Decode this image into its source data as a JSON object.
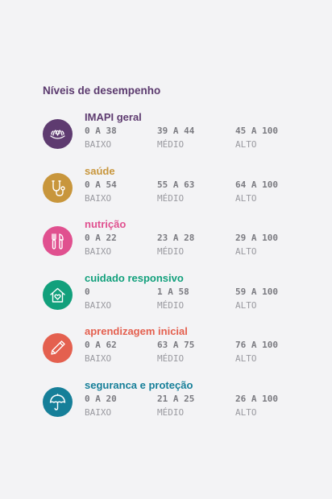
{
  "heading": "Níveis de desempenho",
  "categories": [
    {
      "title": "IMAPI geral",
      "color": "#5e3b70",
      "icon": "lotus-icon",
      "ranges": [
        "0 A 38",
        "39 A 44",
        "45 A 100"
      ],
      "levels": [
        "BAIXO",
        "MÉDIO",
        "ALTO"
      ]
    },
    {
      "title": "saúde",
      "color": "#c8963c",
      "icon": "stethoscope-icon",
      "ranges": [
        "0 A 54",
        "55 A 63",
        "64 A 100"
      ],
      "levels": [
        "BAIXO",
        "MÉDIO",
        "ALTO"
      ]
    },
    {
      "title": "nutrição",
      "color": "#e0508f",
      "icon": "cutlery-icon",
      "ranges": [
        "0 A 22",
        "23 A 28",
        "29 A 100"
      ],
      "levels": [
        "BAIXO",
        "MÉDIO",
        "ALTO"
      ]
    },
    {
      "title": "cuidado responsivo",
      "color": "#12a07c",
      "icon": "house-heart-icon",
      "ranges": [
        "0",
        "1 A 58",
        "59 A 100"
      ],
      "levels": [
        "BAIXO",
        "MÉDIO",
        "ALTO"
      ]
    },
    {
      "title": "aprendizagem inicial",
      "color": "#e4604f",
      "icon": "pencil-icon",
      "ranges": [
        "0 A 62",
        "63 A 75",
        "76 A 100"
      ],
      "levels": [
        "BAIXO",
        "MÉDIO",
        "ALTO"
      ]
    },
    {
      "title": "seguranca e proteção",
      "color": "#167f99",
      "icon": "umbrella-icon",
      "ranges": [
        "0 A 20",
        "21 A 25",
        "26 A 100"
      ],
      "levels": [
        "BAIXO",
        "MÉDIO",
        "ALTO"
      ]
    }
  ]
}
